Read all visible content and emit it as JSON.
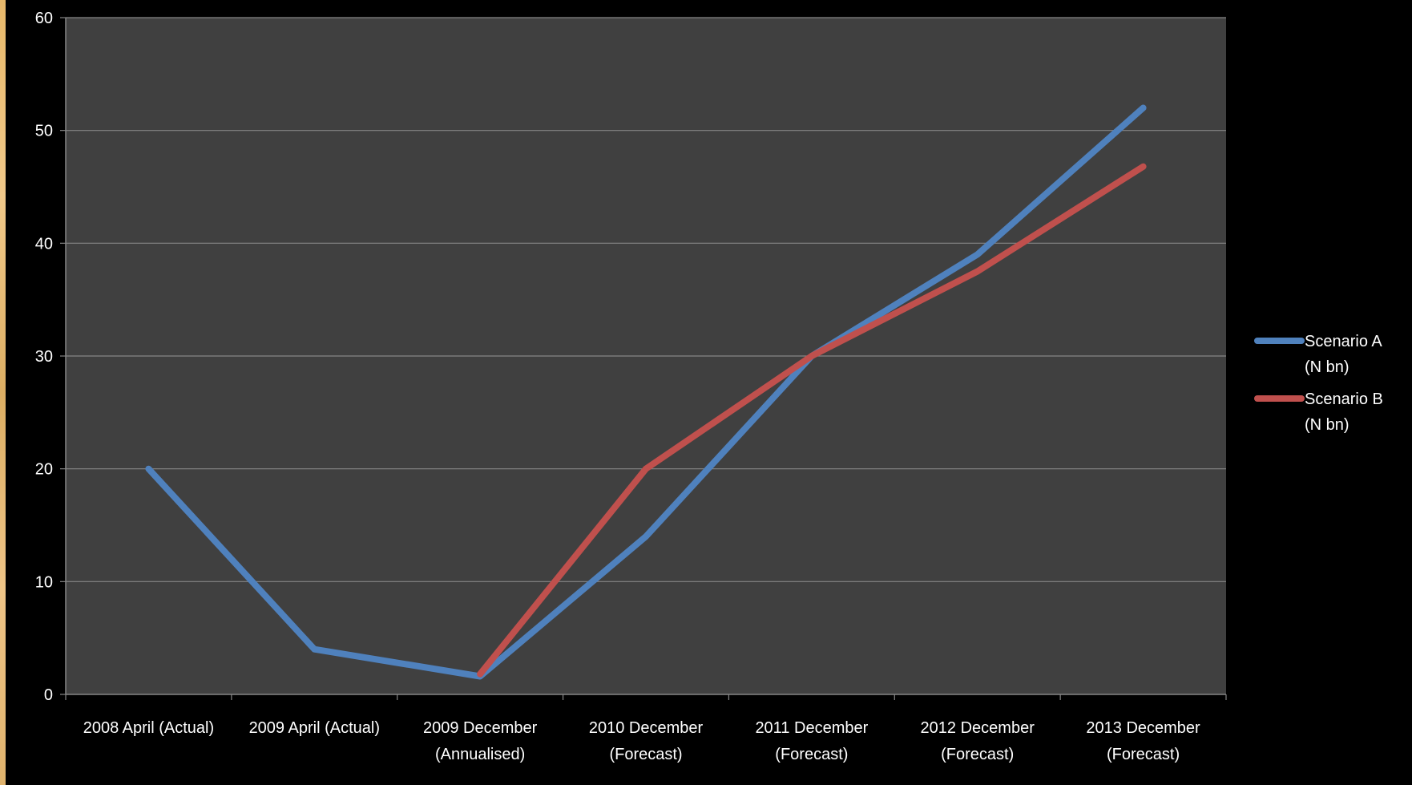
{
  "chart_data": {
    "type": "line",
    "categories": [
      [
        "2008 April (Actual)"
      ],
      [
        "2009 April (Actual)"
      ],
      [
        "2009 December",
        "(Annualised)"
      ],
      [
        "2010 December",
        "(Forecast)"
      ],
      [
        "2011 December",
        "(Forecast)"
      ],
      [
        "2012 December",
        "(Forecast)"
      ],
      [
        "2013 December",
        "(Forecast)"
      ]
    ],
    "series": [
      {
        "name": "Scenario A (N bn)",
        "legend_lines": [
          "Scenario A",
          "(N bn)"
        ],
        "color": "#4f81bd",
        "values": [
          20,
          4,
          1.6,
          14,
          30,
          39,
          52
        ]
      },
      {
        "name": "Scenario B (N bn)",
        "legend_lines": [
          "Scenario B",
          "(N bn)"
        ],
        "color": "#c0504d",
        "values": [
          null,
          null,
          1.8,
          20,
          30,
          37.5,
          46.8
        ]
      }
    ],
    "ylim": [
      0,
      60
    ],
    "yticks": [
      0,
      10,
      20,
      30,
      40,
      50,
      60
    ],
    "grid": true,
    "legend_position": "right",
    "title": "",
    "xlabel": "",
    "ylabel": "",
    "colors": {
      "plot_background": "#404040",
      "page_background": "#000000",
      "gridline": "#868686",
      "text": "#ffffff"
    }
  }
}
